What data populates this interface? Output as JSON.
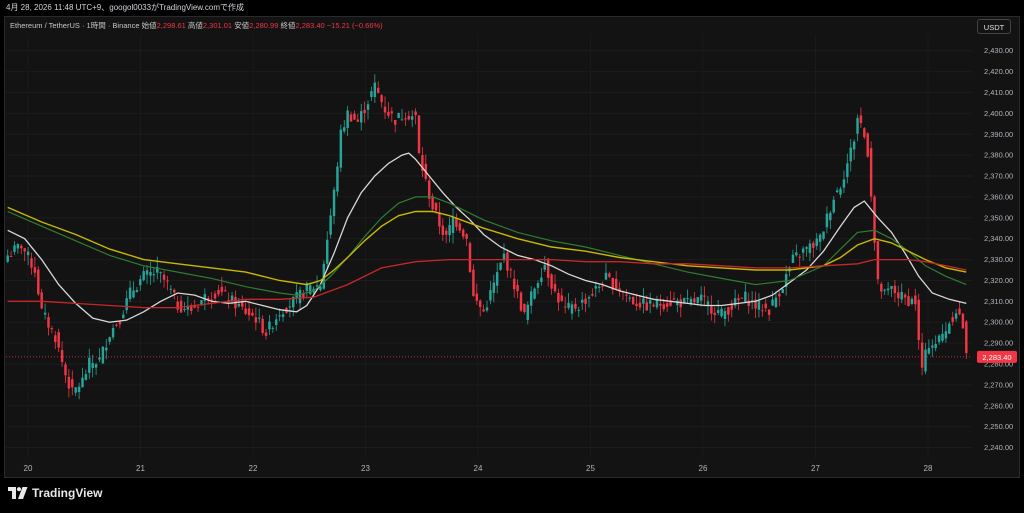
{
  "header": {
    "info_line": "4月 28, 2026 11:48 UTC+9、googol0033がTradingView.comで作成"
  },
  "legend": {
    "symbol": "Ethereum / TetherUS · 1時間 · Binance",
    "open_label": "始値",
    "open": "2,298.61",
    "high_label": "高値",
    "high": "2,301.01",
    "low_label": "安値",
    "low": "2,280.99",
    "close_label": "終値",
    "close": "2,283.40",
    "change": "−15.21 (−0.66%)"
  },
  "currency_button": "USDT",
  "brand": {
    "name": "TradingView",
    "icon": "tradingview-logo-icon"
  },
  "colors": {
    "background": "#131313",
    "up": "#26a69a",
    "down": "#f23645",
    "ma_white": "#d9d9d9",
    "ma_green": "#2e7d32",
    "ma_yellow": "#c9b800",
    "ma_red": "#c62828",
    "last_price": "#f23645"
  },
  "chart_data": {
    "type": "candlestick",
    "symbol": "ETH/USDT",
    "timeframe": "1h",
    "ylim": [
      2235,
      2438
    ],
    "y_ticks": [
      2240,
      2250,
      2260,
      2270,
      2280,
      2290,
      2300,
      2310,
      2320,
      2330,
      2340,
      2350,
      2360,
      2370,
      2380,
      2390,
      2400,
      2410,
      2420,
      2430
    ],
    "y_tick_labels": [
      "2,240.00",
      "2,250.00",
      "2,260.00",
      "2,270.00",
      "2,280.00",
      "2,290.00",
      "2,300.00",
      "2,310.00",
      "2,320.00",
      "2,330.00",
      "2,340.00",
      "2,350.00",
      "2,360.00",
      "2,370.00",
      "2,380.00",
      "2,390.00",
      "2,400.00",
      "2,410.00",
      "2,420.00",
      "2,430.00"
    ],
    "x_labels": [
      "20",
      "21",
      "22",
      "23",
      "24",
      "25",
      "26",
      "27",
      "28"
    ],
    "last_price": 2283.4,
    "last_price_label": "2,283.40",
    "price_anchors": [
      [
        0,
        2332
      ],
      [
        4,
        2337
      ],
      [
        8,
        2325
      ],
      [
        10,
        2305
      ],
      [
        14,
        2293
      ],
      [
        17,
        2275
      ],
      [
        19,
        2266
      ],
      [
        22,
        2272
      ],
      [
        24,
        2280
      ],
      [
        27,
        2282
      ],
      [
        30,
        2295
      ],
      [
        33,
        2302
      ],
      [
        36,
        2314
      ],
      [
        40,
        2322
      ],
      [
        44,
        2324
      ],
      [
        47,
        2318
      ],
      [
        50,
        2308
      ],
      [
        54,
        2306
      ],
      [
        58,
        2312
      ],
      [
        62,
        2315
      ],
      [
        66,
        2310
      ],
      [
        70,
        2305
      ],
      [
        73,
        2302
      ],
      [
        76,
        2295
      ],
      [
        80,
        2305
      ],
      [
        84,
        2310
      ],
      [
        88,
        2316
      ],
      [
        92,
        2318
      ],
      [
        94,
        2340
      ],
      [
        96,
        2362
      ],
      [
        98,
        2390
      ],
      [
        100,
        2400
      ],
      [
        103,
        2396
      ],
      [
        106,
        2406
      ],
      [
        108,
        2413
      ],
      [
        111,
        2402
      ],
      [
        114,
        2397
      ],
      [
        117,
        2400
      ],
      [
        120,
        2398
      ],
      [
        121,
        2380
      ],
      [
        123,
        2367
      ],
      [
        125,
        2355
      ],
      [
        127,
        2347
      ],
      [
        129,
        2340
      ],
      [
        131,
        2350
      ],
      [
        133,
        2346
      ],
      [
        135,
        2340
      ],
      [
        137,
        2312
      ],
      [
        140,
        2305
      ],
      [
        143,
        2318
      ],
      [
        146,
        2332
      ],
      [
        149,
        2318
      ],
      [
        152,
        2303
      ],
      [
        155,
        2317
      ],
      [
        158,
        2328
      ],
      [
        161,
        2314
      ],
      [
        164,
        2306
      ],
      [
        168,
        2308
      ],
      [
        172,
        2314
      ],
      [
        176,
        2321
      ],
      [
        180,
        2316
      ],
      [
        184,
        2310
      ],
      [
        188,
        2308
      ],
      [
        192,
        2309
      ],
      [
        196,
        2310
      ],
      [
        200,
        2309
      ],
      [
        204,
        2311
      ],
      [
        207,
        2307
      ],
      [
        210,
        2304
      ],
      [
        214,
        2309
      ],
      [
        217,
        2312
      ],
      [
        220,
        2308
      ],
      [
        224,
        2306
      ],
      [
        228,
        2318
      ],
      [
        231,
        2330
      ],
      [
        234,
        2334
      ],
      [
        237,
        2337
      ],
      [
        239,
        2340
      ],
      [
        241,
        2350
      ],
      [
        243,
        2360
      ],
      [
        245,
        2366
      ],
      [
        247,
        2376
      ],
      [
        249,
        2388
      ],
      [
        250,
        2398
      ],
      [
        251,
        2395
      ],
      [
        253,
        2382
      ],
      [
        254,
        2362
      ],
      [
        255,
        2338
      ],
      [
        256,
        2318
      ],
      [
        258,
        2313
      ],
      [
        260,
        2316
      ],
      [
        262,
        2313
      ],
      [
        264,
        2311
      ],
      [
        267,
        2310
      ],
      [
        268,
        2290
      ],
      [
        269,
        2278
      ],
      [
        271,
        2290
      ],
      [
        273,
        2290
      ],
      [
        275,
        2294
      ],
      [
        277,
        2300
      ],
      [
        279,
        2306
      ],
      [
        280,
        2303
      ],
      [
        281,
        2298
      ],
      [
        282,
        2283
      ]
    ],
    "moving_averages": [
      {
        "color": "#d9d9d9",
        "width": 1.3,
        "points": [
          [
            0,
            2344
          ],
          [
            5,
            2340
          ],
          [
            10,
            2330
          ],
          [
            15,
            2318
          ],
          [
            20,
            2309
          ],
          [
            25,
            2302
          ],
          [
            30,
            2300
          ],
          [
            35,
            2301
          ],
          [
            40,
            2305
          ],
          [
            45,
            2310
          ],
          [
            50,
            2314
          ],
          [
            55,
            2313
          ],
          [
            60,
            2310
          ],
          [
            65,
            2309
          ],
          [
            70,
            2310
          ],
          [
            75,
            2308
          ],
          [
            80,
            2306
          ],
          [
            85,
            2305
          ],
          [
            88,
            2308
          ],
          [
            92,
            2318
          ],
          [
            96,
            2333
          ],
          [
            100,
            2350
          ],
          [
            104,
            2362
          ],
          [
            108,
            2370
          ],
          [
            112,
            2376
          ],
          [
            116,
            2380
          ],
          [
            118,
            2381
          ],
          [
            120,
            2378
          ],
          [
            124,
            2370
          ],
          [
            128,
            2362
          ],
          [
            132,
            2355
          ],
          [
            136,
            2349
          ],
          [
            140,
            2342
          ],
          [
            145,
            2336
          ],
          [
            150,
            2332
          ],
          [
            155,
            2330
          ],
          [
            160,
            2327
          ],
          [
            165,
            2323
          ],
          [
            170,
            2320
          ],
          [
            175,
            2318
          ],
          [
            180,
            2315
          ],
          [
            185,
            2313
          ],
          [
            190,
            2311
          ],
          [
            195,
            2310
          ],
          [
            200,
            2309
          ],
          [
            205,
            2308
          ],
          [
            210,
            2308
          ],
          [
            215,
            2309
          ],
          [
            220,
            2310
          ],
          [
            225,
            2313
          ],
          [
            230,
            2319
          ],
          [
            235,
            2325
          ],
          [
            240,
            2334
          ],
          [
            245,
            2346
          ],
          [
            249,
            2355
          ],
          [
            252,
            2358
          ],
          [
            256,
            2350
          ],
          [
            260,
            2343
          ],
          [
            264,
            2333
          ],
          [
            268,
            2322
          ],
          [
            272,
            2314
          ],
          [
            277,
            2311
          ],
          [
            282,
            2309
          ]
        ]
      },
      {
        "color": "#2e7d32",
        "width": 1.2,
        "points": [
          [
            0,
            2353
          ],
          [
            10,
            2346
          ],
          [
            20,
            2339
          ],
          [
            30,
            2332
          ],
          [
            40,
            2327
          ],
          [
            50,
            2324
          ],
          [
            60,
            2321
          ],
          [
            70,
            2317
          ],
          [
            80,
            2314
          ],
          [
            85,
            2313
          ],
          [
            90,
            2315
          ],
          [
            95,
            2322
          ],
          [
            100,
            2331
          ],
          [
            105,
            2341
          ],
          [
            110,
            2350
          ],
          [
            115,
            2357
          ],
          [
            120,
            2360
          ],
          [
            125,
            2360
          ],
          [
            130,
            2357
          ],
          [
            140,
            2349
          ],
          [
            150,
            2343
          ],
          [
            160,
            2339
          ],
          [
            170,
            2336
          ],
          [
            180,
            2332
          ],
          [
            190,
            2328
          ],
          [
            200,
            2324
          ],
          [
            210,
            2321
          ],
          [
            220,
            2318
          ],
          [
            230,
            2320
          ],
          [
            240,
            2327
          ],
          [
            245,
            2335
          ],
          [
            250,
            2343
          ],
          [
            255,
            2344
          ],
          [
            260,
            2340
          ],
          [
            265,
            2334
          ],
          [
            270,
            2327
          ],
          [
            276,
            2322
          ],
          [
            282,
            2318
          ]
        ]
      },
      {
        "color": "#c9b800",
        "width": 1.4,
        "points": [
          [
            0,
            2355
          ],
          [
            10,
            2348
          ],
          [
            20,
            2342
          ],
          [
            30,
            2335
          ],
          [
            40,
            2330
          ],
          [
            50,
            2328
          ],
          [
            60,
            2326
          ],
          [
            70,
            2324
          ],
          [
            80,
            2320
          ],
          [
            88,
            2318
          ],
          [
            92,
            2320
          ],
          [
            96,
            2325
          ],
          [
            100,
            2331
          ],
          [
            105,
            2339
          ],
          [
            110,
            2346
          ],
          [
            115,
            2351
          ],
          [
            120,
            2353
          ],
          [
            125,
            2353
          ],
          [
            130,
            2351
          ],
          [
            140,
            2345
          ],
          [
            150,
            2340
          ],
          [
            160,
            2336
          ],
          [
            170,
            2334
          ],
          [
            180,
            2331
          ],
          [
            190,
            2329
          ],
          [
            200,
            2327
          ],
          [
            210,
            2326
          ],
          [
            220,
            2325
          ],
          [
            230,
            2325
          ],
          [
            240,
            2327
          ],
          [
            245,
            2331
          ],
          [
            250,
            2337
          ],
          [
            255,
            2340
          ],
          [
            260,
            2338
          ],
          [
            265,
            2334
          ],
          [
            270,
            2330
          ],
          [
            276,
            2326
          ],
          [
            282,
            2324
          ]
        ]
      },
      {
        "color": "#c62828",
        "width": 1.3,
        "points": [
          [
            0,
            2310
          ],
          [
            10,
            2310
          ],
          [
            20,
            2309
          ],
          [
            30,
            2308
          ],
          [
            40,
            2307
          ],
          [
            50,
            2307
          ],
          [
            60,
            2309
          ],
          [
            70,
            2311
          ],
          [
            80,
            2311
          ],
          [
            90,
            2312
          ],
          [
            100,
            2318
          ],
          [
            110,
            2326
          ],
          [
            120,
            2329
          ],
          [
            130,
            2330
          ],
          [
            140,
            2330
          ],
          [
            150,
            2330
          ],
          [
            160,
            2330
          ],
          [
            170,
            2329
          ],
          [
            180,
            2329
          ],
          [
            190,
            2328
          ],
          [
            200,
            2328
          ],
          [
            210,
            2327
          ],
          [
            220,
            2326
          ],
          [
            230,
            2326
          ],
          [
            240,
            2327
          ],
          [
            250,
            2328
          ],
          [
            255,
            2330
          ],
          [
            260,
            2330
          ],
          [
            265,
            2330
          ],
          [
            270,
            2329
          ],
          [
            276,
            2327
          ],
          [
            282,
            2325
          ]
        ]
      }
    ]
  }
}
